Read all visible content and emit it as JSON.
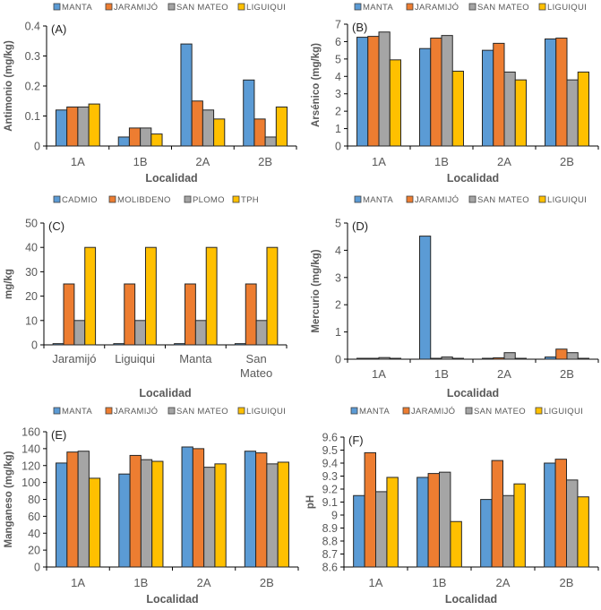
{
  "figure": {
    "colors": {
      "blue": "#5B9BD5",
      "orange": "#ED7D31",
      "gray": "#A5A5A5",
      "yellow": "#FFC000",
      "axis": "#000000",
      "text": "#595959"
    }
  },
  "chart_data": [
    {
      "id": "A",
      "tag": "(A)",
      "type": "bar",
      "title": "",
      "xlabel": "Localidad",
      "ylabel": "Antimonio (mg/kg)",
      "categories": [
        "1A",
        "1B",
        "2A",
        "2B"
      ],
      "ylim": [
        0,
        0.4
      ],
      "yticks": [
        0,
        0.1,
        0.2,
        0.3,
        0.4
      ],
      "ytick_labels": [
        "0",
        "0.1",
        "0.2",
        "0.3",
        "0.4"
      ],
      "legend_position": "top",
      "grid": false,
      "series": [
        {
          "name": "MANTA",
          "color": "#5B9BD5",
          "values": [
            0.12,
            0.03,
            0.34,
            0.22
          ]
        },
        {
          "name": "JARAMIJÓ",
          "color": "#ED7D31",
          "values": [
            0.13,
            0.06,
            0.15,
            0.09
          ]
        },
        {
          "name": "SAN MATEO",
          "color": "#A5A5A5",
          "values": [
            0.13,
            0.06,
            0.12,
            0.03
          ]
        },
        {
          "name": "LIGUIQUI",
          "color": "#FFC000",
          "values": [
            0.14,
            0.04,
            0.09,
            0.13
          ]
        }
      ]
    },
    {
      "id": "B",
      "tag": "(B)",
      "type": "bar",
      "title": "",
      "xlabel": "Localidad",
      "ylabel": "Arsénico (mg/kg)",
      "categories": [
        "1A",
        "1B",
        "2A",
        "2B"
      ],
      "ylim": [
        0,
        7
      ],
      "yticks": [
        0,
        1,
        2,
        3,
        4,
        5,
        6,
        7
      ],
      "ytick_labels": [
        "0",
        "1",
        "2",
        "3",
        "4",
        "5",
        "6",
        "7"
      ],
      "legend_position": "top",
      "grid": false,
      "series": [
        {
          "name": "MANTA",
          "color": "#5B9BD5",
          "values": [
            6.25,
            5.6,
            5.5,
            6.15
          ]
        },
        {
          "name": "JARAMIJÓ",
          "color": "#ED7D31",
          "values": [
            6.3,
            6.2,
            5.9,
            6.2
          ]
        },
        {
          "name": "SAN MATEO",
          "color": "#A5A5A5",
          "values": [
            6.55,
            6.35,
            4.25,
            3.8
          ]
        },
        {
          "name": "LIGUIQUI",
          "color": "#FFC000",
          "values": [
            4.95,
            4.3,
            3.8,
            4.25
          ]
        }
      ]
    },
    {
      "id": "C",
      "tag": "(C)",
      "type": "bar",
      "title": "",
      "xlabel": "Localidad",
      "ylabel": "mg/kg",
      "categories": [
        "Jaramijó",
        "Liguiqui",
        "Manta",
        "San Mateo"
      ],
      "ylim": [
        0,
        50
      ],
      "yticks": [
        0,
        10,
        20,
        30,
        40,
        50
      ],
      "ytick_labels": [
        "0",
        "10",
        "20",
        "30",
        "40",
        "50"
      ],
      "legend_position": "top",
      "grid": false,
      "series": [
        {
          "name": "CADMIO",
          "color": "#5B9BD5",
          "values": [
            0.5,
            0.5,
            0.5,
            0.5
          ]
        },
        {
          "name": "MOLIBDENO",
          "color": "#ED7D31",
          "values": [
            25,
            25,
            25,
            25
          ]
        },
        {
          "name": "PLOMO",
          "color": "#A5A5A5",
          "values": [
            10,
            10,
            10,
            10
          ]
        },
        {
          "name": "TPH",
          "color": "#FFC000",
          "values": [
            40,
            40,
            40,
            40
          ]
        }
      ]
    },
    {
      "id": "D",
      "tag": "(D)",
      "type": "bar",
      "title": "",
      "xlabel": "Localidad",
      "ylabel": "Mercurio (mg/kg)",
      "categories": [
        "1A",
        "1B",
        "2A",
        "2B"
      ],
      "ylim": [
        0,
        5
      ],
      "yticks": [
        0,
        1,
        2,
        3,
        4,
        5
      ],
      "ytick_labels": [
        "0",
        "1",
        "2",
        "3",
        "4",
        "5"
      ],
      "legend_position": "top",
      "grid": false,
      "series": [
        {
          "name": "MANTA",
          "color": "#5B9BD5",
          "values": [
            0.02,
            4.52,
            0.02,
            0.08
          ]
        },
        {
          "name": "JARAMIJÓ",
          "color": "#ED7D31",
          "values": [
            0.02,
            0.02,
            0.05,
            0.37
          ]
        },
        {
          "name": "SAN MATEO",
          "color": "#A5A5A5",
          "values": [
            0.06,
            0.08,
            0.24,
            0.24
          ]
        },
        {
          "name": "LIGUIQUI",
          "color": "#FFC000",
          "values": [
            0.02,
            0.02,
            0.02,
            0.02
          ]
        }
      ]
    },
    {
      "id": "E",
      "tag": "(E)",
      "type": "bar",
      "title": "",
      "xlabel": "Localidad",
      "ylabel": "Manganeso (mg/kg)",
      "categories": [
        "1A",
        "1B",
        "2A",
        "2B"
      ],
      "ylim": [
        0,
        160
      ],
      "yticks": [
        0,
        20,
        40,
        60,
        80,
        100,
        120,
        140,
        160
      ],
      "ytick_labels": [
        "0",
        "20",
        "40",
        "60",
        "80",
        "100",
        "120",
        "140",
        "160"
      ],
      "legend_position": "top",
      "grid": false,
      "series": [
        {
          "name": "MANTA",
          "color": "#5B9BD5",
          "values": [
            123,
            110,
            142,
            137
          ]
        },
        {
          "name": "JARAMIJÓ",
          "color": "#ED7D31",
          "values": [
            136,
            132,
            140,
            135
          ]
        },
        {
          "name": "SAN MATEO",
          "color": "#A5A5A5",
          "values": [
            137,
            127,
            118,
            122
          ]
        },
        {
          "name": "LIGUIQUI",
          "color": "#FFC000",
          "values": [
            105,
            125,
            122,
            124
          ]
        }
      ]
    },
    {
      "id": "F",
      "tag": "(F)",
      "type": "bar",
      "title": "",
      "xlabel": "Localidad",
      "ylabel": "pH",
      "categories": [
        "1A",
        "1B",
        "2A",
        "2B"
      ],
      "ylim": [
        8.6,
        9.6
      ],
      "yticks": [
        8.6,
        8.7,
        8.8,
        8.9,
        9.0,
        9.1,
        9.2,
        9.3,
        9.4,
        9.5,
        9.6
      ],
      "ytick_labels": [
        "8.6",
        "8.7",
        "8.8",
        "8.9",
        "9",
        "9.1",
        "9.2",
        "9.3",
        "9.4",
        "9.5",
        "9.6"
      ],
      "legend_position": "top",
      "grid": false,
      "series": [
        {
          "name": "MANTA",
          "color": "#5B9BD5",
          "values": [
            9.15,
            9.29,
            9.12,
            9.4
          ]
        },
        {
          "name": "JARAMIJÓ",
          "color": "#ED7D31",
          "values": [
            9.48,
            9.32,
            9.42,
            9.43
          ]
        },
        {
          "name": "SAN MATEO",
          "color": "#A5A5A5",
          "values": [
            9.18,
            9.33,
            9.15,
            9.27
          ]
        },
        {
          "name": "LIGUIQUI",
          "color": "#FFC000",
          "values": [
            9.29,
            8.95,
            9.24,
            9.14
          ]
        }
      ]
    }
  ]
}
